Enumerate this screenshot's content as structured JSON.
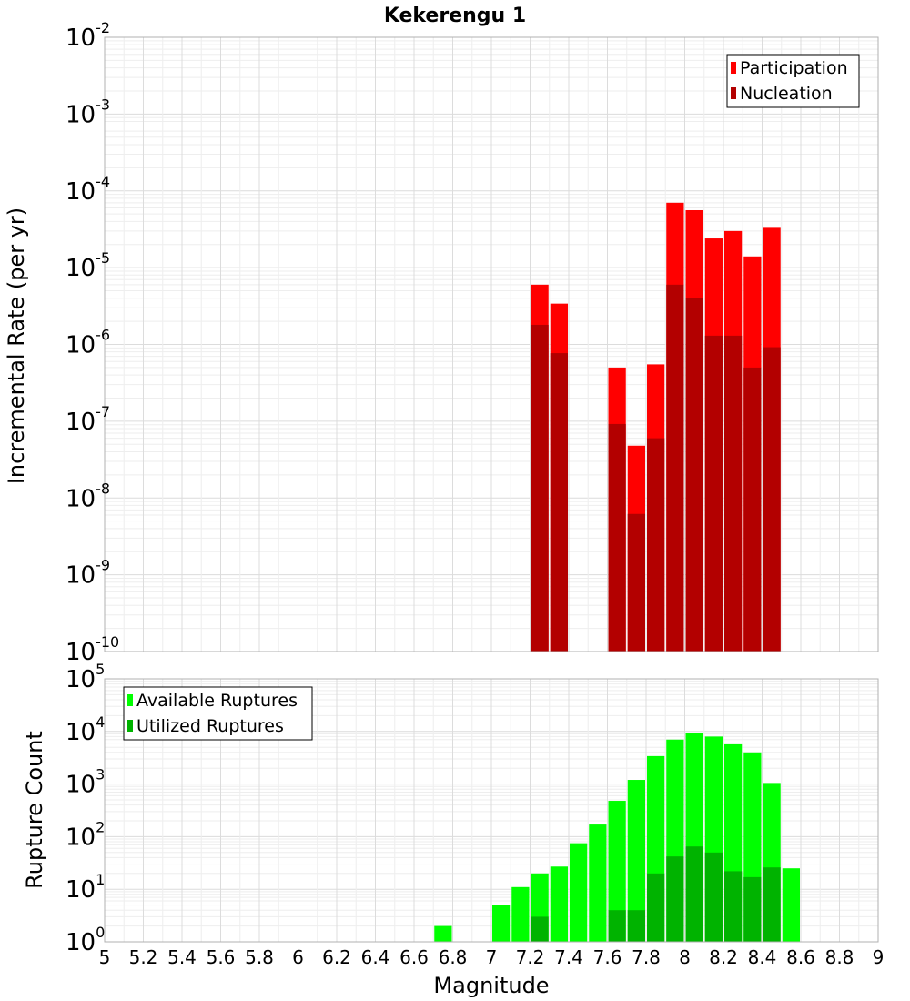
{
  "chart_data": [
    {
      "type": "bar",
      "title": "Kekerengu 1",
      "ylabel": "Incremental Rate (per yr)",
      "xlabel": "",
      "log_y": true,
      "xlim": [
        5,
        9
      ],
      "ylim_exp": [
        -10,
        -2
      ],
      "bar_width": 0.1,
      "legend_position": "top-right",
      "x": [
        7.25,
        7.35,
        7.65,
        7.75,
        7.85,
        7.95,
        8.05,
        8.15,
        8.25,
        8.35,
        8.45
      ],
      "series": [
        {
          "name": "Participation",
          "color": "#ff0000",
          "values": [
            6e-06,
            3.4e-06,
            5e-07,
            4.8e-08,
            5.5e-07,
            7e-05,
            5.6e-05,
            2.4e-05,
            3e-05,
            1.4e-05,
            3.3e-05
          ]
        },
        {
          "name": "Nucleation",
          "color": "#b30000",
          "values": [
            1.8e-06,
            7.7e-07,
            9.2e-08,
            6.2e-09,
            6e-08,
            6e-06,
            4e-06,
            1.3e-06,
            1.3e-06,
            5e-07,
            9.2e-07
          ]
        }
      ]
    },
    {
      "type": "bar",
      "title": "",
      "ylabel": "Rupture Count",
      "xlabel": "Magnitude",
      "log_y": true,
      "xlim": [
        5,
        9
      ],
      "ylim_exp": [
        0,
        5
      ],
      "bar_width": 0.1,
      "legend_position": "top-left",
      "x_tick_labels": [
        "5",
        "5.2",
        "5.4",
        "5.6",
        "5.8",
        "6",
        "6.2",
        "6.4",
        "6.6",
        "6.8",
        "7",
        "7.2",
        "7.4",
        "7.6",
        "7.8",
        "8",
        "8.2",
        "8.4",
        "8.6",
        "8.8",
        "9"
      ],
      "x": [
        6.75,
        6.95,
        7.05,
        7.15,
        7.25,
        7.35,
        7.45,
        7.55,
        7.65,
        7.75,
        7.85,
        7.95,
        8.05,
        8.15,
        8.25,
        8.35,
        8.45,
        8.55
      ],
      "series": [
        {
          "name": "Available Ruptures",
          "color": "#00ff00",
          "values": [
            2,
            1,
            5,
            11,
            20,
            27,
            75,
            170,
            480,
            1200,
            3400,
            7000,
            9500,
            8000,
            5700,
            4000,
            1050,
            25
          ]
        },
        {
          "name": "Utilized Ruptures",
          "color": "#00b300",
          "values": [
            0,
            0,
            1,
            1,
            3,
            1,
            0,
            0,
            4,
            4,
            20,
            42,
            65,
            50,
            22,
            17,
            26,
            0
          ]
        }
      ]
    }
  ]
}
